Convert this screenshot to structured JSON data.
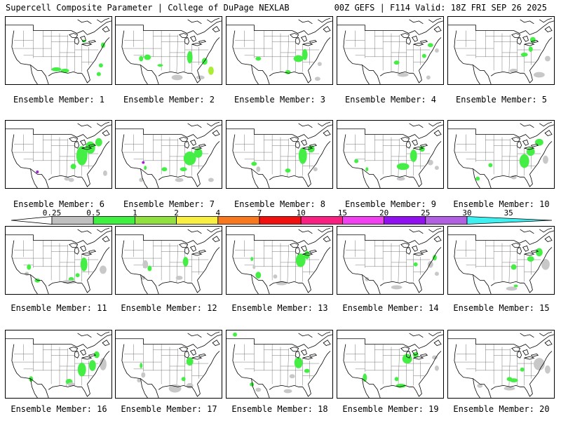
{
  "header": {
    "left": "Supercell Composite Parameter | College of DuPage NEXLAB",
    "right": "00Z GEFS | F114 Valid: 18Z FRI SEP 26 2025"
  },
  "member_caption_prefix": "Ensemble Member: ",
  "members": [
    {
      "label": "Ensemble Member: 1",
      "blobs": [
        [
          0.74,
          0.36,
          3,
          2,
          "g"
        ],
        [
          0.48,
          0.78,
          7,
          3,
          "g"
        ],
        [
          0.56,
          0.8,
          6,
          3,
          "g"
        ],
        [
          0.88,
          0.85,
          3,
          3,
          "g"
        ],
        [
          0.9,
          0.72,
          3,
          3,
          "g"
        ],
        [
          0.92,
          0.42,
          3,
          4,
          "g"
        ]
      ]
    },
    {
      "label": "Ensemble Member: 2",
      "blobs": [
        [
          0.3,
          0.6,
          5,
          4,
          "g"
        ],
        [
          0.24,
          0.62,
          3,
          4,
          "g"
        ],
        [
          0.42,
          0.72,
          4,
          2,
          "g"
        ],
        [
          0.7,
          0.6,
          4,
          9,
          "g"
        ],
        [
          0.84,
          0.66,
          4,
          5,
          "g"
        ],
        [
          0.9,
          0.8,
          4,
          6,
          "y"
        ],
        [
          0.58,
          0.9,
          8,
          4,
          "s"
        ],
        [
          0.8,
          0.9,
          6,
          3,
          "s"
        ]
      ]
    },
    {
      "label": "Ensemble Member: 3",
      "blobs": [
        [
          0.68,
          0.62,
          7,
          5,
          "g"
        ],
        [
          0.74,
          0.56,
          4,
          8,
          "g"
        ],
        [
          0.58,
          0.82,
          4,
          3,
          "g"
        ],
        [
          0.3,
          0.62,
          4,
          3,
          "g"
        ],
        [
          0.88,
          0.7,
          3,
          3,
          "s"
        ],
        [
          0.86,
          0.92,
          4,
          3,
          "s"
        ]
      ]
    },
    {
      "label": "Ensemble Member: 4",
      "blobs": [
        [
          0.56,
          0.68,
          4,
          3,
          "g"
        ],
        [
          0.82,
          0.58,
          3,
          3,
          "g"
        ],
        [
          0.88,
          0.42,
          4,
          3,
          "g"
        ],
        [
          0.94,
          0.5,
          3,
          3,
          "s"
        ],
        [
          0.62,
          0.86,
          8,
          3,
          "s"
        ],
        [
          0.86,
          0.9,
          3,
          3,
          "s"
        ]
      ]
    },
    {
      "label": "Ensemble Member: 5",
      "blobs": [
        [
          0.72,
          0.56,
          5,
          3,
          "g"
        ],
        [
          0.78,
          0.48,
          3,
          4,
          "g"
        ],
        [
          0.8,
          0.34,
          4,
          4,
          "g"
        ],
        [
          0.62,
          0.8,
          6,
          3,
          "s"
        ],
        [
          0.86,
          0.86,
          8,
          4,
          "s"
        ],
        [
          0.94,
          0.62,
          4,
          4,
          "s"
        ]
      ]
    },
    {
      "label": "Ensemble Member: 6",
      "blobs": [
        [
          0.72,
          0.52,
          8,
          14,
          "g"
        ],
        [
          0.8,
          0.4,
          7,
          9,
          "g"
        ],
        [
          0.88,
          0.32,
          5,
          6,
          "g"
        ],
        [
          0.64,
          0.68,
          4,
          4,
          "g"
        ],
        [
          0.62,
          0.88,
          4,
          3,
          "s"
        ],
        [
          0.58,
          0.86,
          4,
          3,
          "s"
        ],
        [
          0.94,
          0.78,
          3,
          4,
          "s"
        ],
        [
          0.3,
          0.76,
          2,
          2,
          "p"
        ]
      ]
    },
    {
      "label": "Ensemble Member: 7",
      "blobs": [
        [
          0.7,
          0.56,
          9,
          10,
          "g"
        ],
        [
          0.78,
          0.48,
          6,
          7,
          "g"
        ],
        [
          0.64,
          0.72,
          5,
          3,
          "g"
        ],
        [
          0.46,
          0.72,
          4,
          3,
          "g"
        ],
        [
          0.28,
          0.7,
          2,
          3,
          "g"
        ],
        [
          0.24,
          0.88,
          3,
          3,
          "s"
        ],
        [
          0.6,
          0.88,
          6,
          3,
          "s"
        ],
        [
          0.9,
          0.88,
          4,
          3,
          "s"
        ],
        [
          0.26,
          0.62,
          2,
          2,
          "p"
        ]
      ]
    },
    {
      "label": "Ensemble Member: 8",
      "blobs": [
        [
          0.72,
          0.52,
          6,
          12,
          "g"
        ],
        [
          0.8,
          0.42,
          5,
          5,
          "g"
        ],
        [
          0.26,
          0.64,
          4,
          3,
          "g"
        ],
        [
          0.58,
          0.74,
          4,
          3,
          "g"
        ],
        [
          0.3,
          0.72,
          3,
          4,
          "s"
        ],
        [
          0.84,
          0.72,
          3,
          3,
          "s"
        ]
      ]
    },
    {
      "label": "Ensemble Member: 9",
      "blobs": [
        [
          0.62,
          0.68,
          9,
          5,
          "g"
        ],
        [
          0.72,
          0.52,
          5,
          9,
          "g"
        ],
        [
          0.8,
          0.42,
          4,
          4,
          "g"
        ],
        [
          0.18,
          0.6,
          3,
          3,
          "g"
        ],
        [
          0.28,
          0.72,
          2,
          3,
          "g"
        ],
        [
          0.88,
          0.62,
          4,
          4,
          "s"
        ],
        [
          0.94,
          0.7,
          3,
          3,
          "s"
        ],
        [
          0.6,
          0.86,
          6,
          3,
          "s"
        ]
      ]
    },
    {
      "label": "Ensemble Member: 10",
      "blobs": [
        [
          0.72,
          0.6,
          7,
          10,
          "g"
        ],
        [
          0.78,
          0.46,
          6,
          6,
          "g"
        ],
        [
          0.86,
          0.32,
          6,
          5,
          "g"
        ],
        [
          0.4,
          0.66,
          3,
          3,
          "g"
        ],
        [
          0.28,
          0.86,
          3,
          3,
          "g"
        ],
        [
          0.92,
          0.58,
          4,
          6,
          "s"
        ],
        [
          0.62,
          0.84,
          4,
          3,
          "s"
        ]
      ]
    },
    {
      "label": "Ensemble Member: 11",
      "blobs": [
        [
          0.74,
          0.56,
          5,
          10,
          "g"
        ],
        [
          0.68,
          0.72,
          3,
          3,
          "g"
        ],
        [
          0.62,
          0.78,
          4,
          3,
          "g"
        ],
        [
          0.22,
          0.6,
          3,
          4,
          "g"
        ],
        [
          0.3,
          0.8,
          4,
          3,
          "g"
        ],
        [
          0.6,
          0.82,
          10,
          3,
          "s"
        ],
        [
          0.92,
          0.64,
          5,
          6,
          "s"
        ],
        [
          0.2,
          0.7,
          3,
          3,
          "s"
        ]
      ]
    },
    {
      "label": "Ensemble Member: 12",
      "blobs": [
        [
          0.66,
          0.52,
          4,
          7,
          "g"
        ],
        [
          0.32,
          0.62,
          3,
          4,
          "g"
        ],
        [
          0.28,
          0.56,
          4,
          6,
          "s"
        ],
        [
          0.6,
          0.76,
          5,
          3,
          "s"
        ],
        [
          0.26,
          0.76,
          3,
          3,
          "s"
        ]
      ]
    },
    {
      "label": "Ensemble Member: 13",
      "blobs": [
        [
          0.7,
          0.5,
          7,
          10,
          "g"
        ],
        [
          0.76,
          0.42,
          4,
          6,
          "g"
        ],
        [
          0.24,
          0.48,
          2,
          3,
          "g"
        ],
        [
          0.3,
          0.72,
          4,
          5,
          "g"
        ],
        [
          0.26,
          0.6,
          2,
          3,
          "s"
        ],
        [
          0.52,
          0.84,
          8,
          3,
          "s"
        ],
        [
          0.46,
          0.74,
          3,
          3,
          "s"
        ]
      ]
    },
    {
      "label": "Ensemble Member: 14",
      "blobs": [
        [
          0.74,
          0.56,
          3,
          3,
          "g"
        ],
        [
          0.92,
          0.46,
          3,
          4,
          "g"
        ],
        [
          0.28,
          0.78,
          3,
          3,
          "s"
        ],
        [
          0.56,
          0.9,
          8,
          3,
          "s"
        ],
        [
          0.88,
          0.56,
          4,
          5,
          "s"
        ],
        [
          0.94,
          0.7,
          3,
          3,
          "s"
        ]
      ]
    },
    {
      "label": "Ensemble Member: 15",
      "blobs": [
        [
          0.78,
          0.48,
          5,
          4,
          "g"
        ],
        [
          0.86,
          0.38,
          5,
          6,
          "g"
        ],
        [
          0.62,
          0.6,
          4,
          4,
          "g"
        ],
        [
          0.64,
          0.88,
          3,
          2,
          "g"
        ],
        [
          0.92,
          0.56,
          6,
          8,
          "s"
        ],
        [
          0.6,
          0.92,
          8,
          3,
          "s"
        ]
      ]
    },
    {
      "label": "Ensemble Member: 16",
      "blobs": [
        [
          0.72,
          0.58,
          6,
          10,
          "g"
        ],
        [
          0.82,
          0.52,
          5,
          8,
          "g"
        ],
        [
          0.86,
          0.36,
          4,
          5,
          "g"
        ],
        [
          0.6,
          0.76,
          5,
          4,
          "g"
        ],
        [
          0.24,
          0.72,
          3,
          4,
          "g"
        ],
        [
          0.92,
          0.5,
          5,
          9,
          "s"
        ],
        [
          0.62,
          0.8,
          5,
          3,
          "s"
        ]
      ]
    },
    {
      "label": "Ensemble Member: 17",
      "blobs": [
        [
          0.7,
          0.46,
          5,
          6,
          "g"
        ],
        [
          0.64,
          0.72,
          3,
          3,
          "g"
        ],
        [
          0.24,
          0.52,
          2,
          4,
          "g"
        ],
        [
          0.56,
          0.86,
          9,
          6,
          "s"
        ],
        [
          0.7,
          0.82,
          5,
          4,
          "s"
        ],
        [
          0.26,
          0.66,
          3,
          4,
          "s"
        ],
        [
          0.22,
          0.74,
          3,
          3,
          "s"
        ]
      ]
    },
    {
      "label": "Ensemble Member: 18",
      "blobs": [
        [
          0.68,
          0.48,
          6,
          8,
          "g"
        ],
        [
          0.76,
          0.6,
          4,
          3,
          "g"
        ],
        [
          0.24,
          0.8,
          3,
          3,
          "g"
        ],
        [
          0.08,
          0.06,
          3,
          3,
          "g"
        ],
        [
          0.62,
          0.68,
          4,
          3,
          "s"
        ],
        [
          0.3,
          0.88,
          4,
          3,
          "s"
        ],
        [
          0.58,
          0.9,
          6,
          3,
          "s"
        ]
      ]
    },
    {
      "label": "Ensemble Member: 19",
      "blobs": [
        [
          0.66,
          0.42,
          7,
          7,
          "g"
        ],
        [
          0.74,
          0.36,
          4,
          4,
          "g"
        ],
        [
          0.26,
          0.7,
          3,
          6,
          "g"
        ],
        [
          0.56,
          0.72,
          3,
          3,
          "g"
        ],
        [
          0.6,
          0.82,
          7,
          3,
          "g"
        ],
        [
          0.92,
          0.4,
          4,
          3,
          "s"
        ],
        [
          0.94,
          0.56,
          3,
          4,
          "s"
        ]
      ]
    },
    {
      "label": "Ensemble Member: 20",
      "blobs": [
        [
          0.62,
          0.74,
          6,
          3,
          "g"
        ],
        [
          0.58,
          0.72,
          4,
          3,
          "g"
        ],
        [
          0.7,
          0.58,
          3,
          3,
          "g"
        ],
        [
          0.86,
          0.5,
          8,
          9,
          "s"
        ],
        [
          0.94,
          0.58,
          4,
          6,
          "s"
        ],
        [
          0.58,
          0.86,
          8,
          3,
          "s"
        ],
        [
          0.3,
          0.82,
          4,
          3,
          "s"
        ]
      ]
    }
  ],
  "colorbar": {
    "labels": [
      "0.25",
      "0.5",
      "1",
      "2",
      "4",
      "7",
      "10",
      "15",
      "20",
      "25",
      "30",
      "35"
    ],
    "bin_colors": [
      "#c0c0c0",
      "#40f040",
      "#90e040",
      "#f8f040",
      "#f87820",
      "#f01010",
      "#f82080",
      "#f040f0",
      "#9010f0",
      "#b060e0"
    ],
    "low_arrow_color": "#ffffff",
    "high_arrow_color": "#40f0f0"
  },
  "shade_colors": {
    "s": "#c8c8c8",
    "g": "#44ee44",
    "y": "#aaee33",
    "p": "#a020d0"
  }
}
